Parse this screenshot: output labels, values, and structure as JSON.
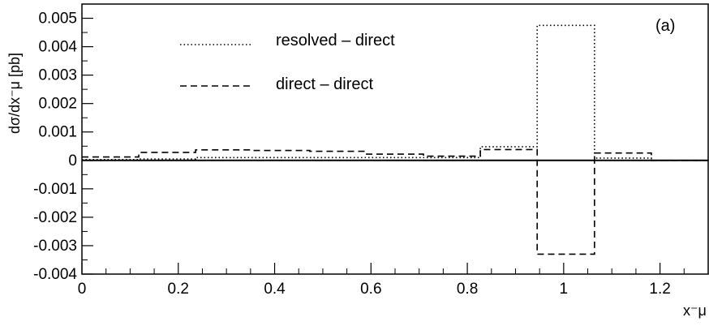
{
  "chart_data": {
    "type": "line",
    "panel_label": "(a)",
    "ylabel": "dσ/dx⁻μ [pb]",
    "xlabel": "x⁻μ",
    "xlim": [
      0,
      1.3
    ],
    "ylim": [
      -0.004,
      0.0055
    ],
    "x_ticks": [
      "0",
      "0.2",
      "0.4",
      "0.6",
      "0.8",
      "1",
      "1.2"
    ],
    "y_ticks": [
      "0.005",
      "0.004",
      "0.003",
      "0.002",
      "0.001",
      "0",
      "-0.001",
      "-0.002",
      "-0.003",
      "-0.004"
    ],
    "x_tick_values": [
      0,
      0.2,
      0.4,
      0.6,
      0.8,
      1.0,
      1.2
    ],
    "y_tick_values": [
      0.005,
      0.004,
      0.003,
      0.002,
      0.001,
      0,
      -0.001,
      -0.002,
      -0.003,
      -0.004
    ],
    "grid": false,
    "legend_position": "top-left",
    "bin_edges": [
      0,
      0.118,
      0.236,
      0.355,
      0.473,
      0.591,
      0.709,
      0.827,
      0.945,
      1.064,
      1.182,
      1.3
    ],
    "series": [
      {
        "name": "resolved – direct",
        "style": "dotted",
        "values": [
          3e-05,
          5e-05,
          0.0001,
          0.0001,
          0.0001,
          0.0001,
          0.0001,
          0.00048,
          0.00475,
          8e-05,
          0.0
        ]
      },
      {
        "name": "direct – direct",
        "style": "dashed",
        "values": [
          0.00012,
          0.00028,
          0.00037,
          0.00035,
          0.00032,
          0.00022,
          0.00015,
          0.00038,
          -0.0033,
          0.00026,
          0.0
        ]
      }
    ]
  }
}
